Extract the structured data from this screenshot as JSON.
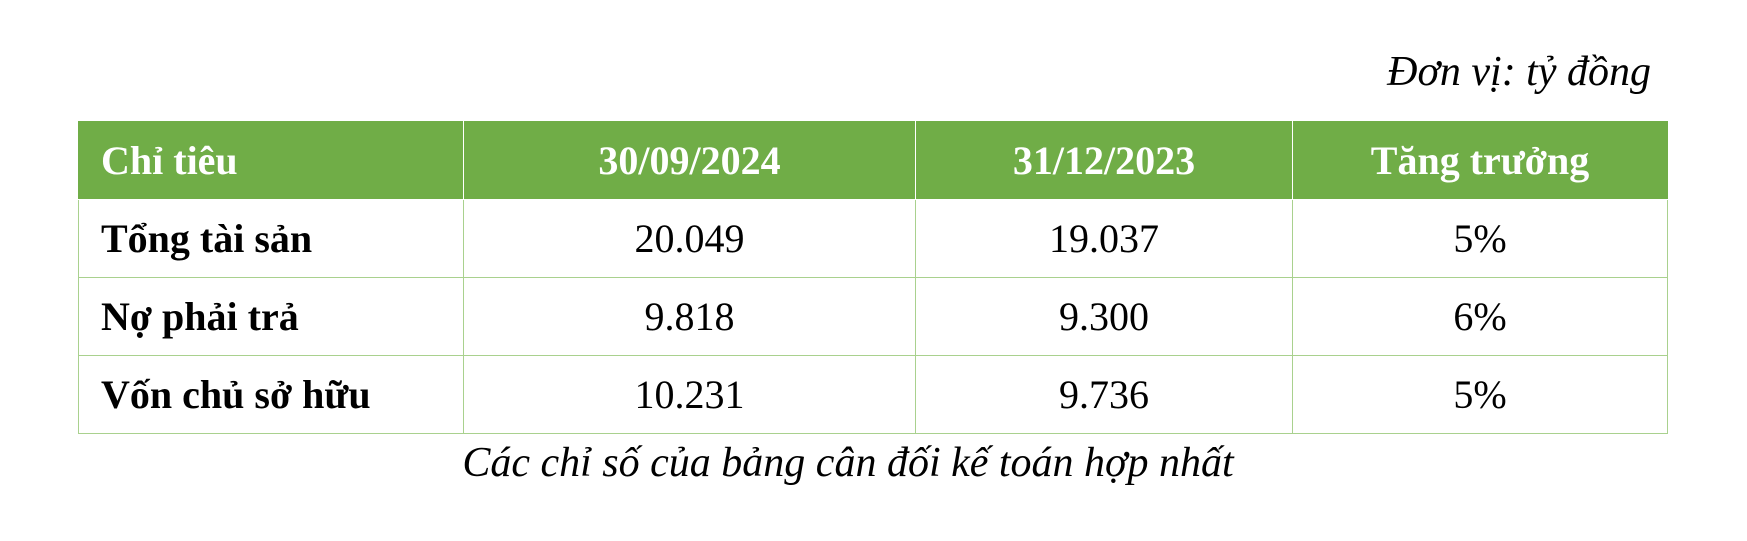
{
  "unit_note": "Đơn vị: tỷ đồng",
  "table": {
    "headers": [
      "Chỉ tiêu",
      "30/09/2024",
      "31/12/2023",
      "Tăng trưởng"
    ],
    "rows": [
      {
        "label": "Tổng tài sản",
        "v2024": "20.049",
        "v2023": "19.037",
        "growth": "5%"
      },
      {
        "label": "Nợ phải trả",
        "v2024": "9.818",
        "v2023": "9.300",
        "growth": "6%"
      },
      {
        "label": "Vốn chủ sở hữu",
        "v2024": "10.231",
        "v2023": "9.736",
        "growth": "5%"
      }
    ]
  },
  "caption": "Các chỉ số của bảng cân đối kế toán hợp nhất",
  "colors": {
    "header_bg": "#70ad47",
    "header_text": "#ffffff",
    "grid": "#a9d18e"
  }
}
